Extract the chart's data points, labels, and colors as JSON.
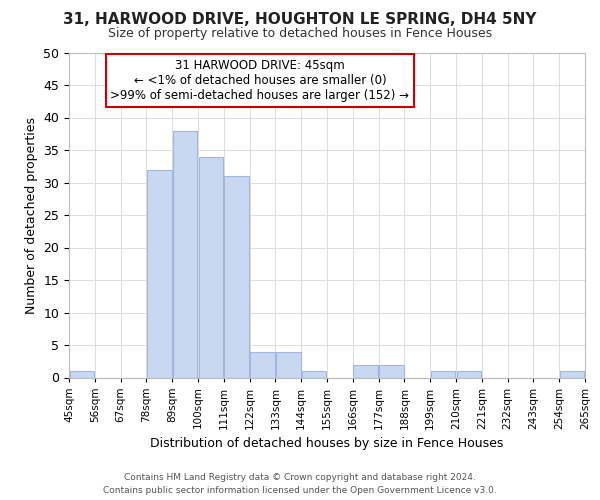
{
  "title": "31, HARWOOD DRIVE, HOUGHTON LE SPRING, DH4 5NY",
  "subtitle": "Size of property relative to detached houses in Fence Houses",
  "xlabel": "Distribution of detached houses by size in Fence Houses",
  "ylabel": "Number of detached properties",
  "bin_edges": [
    45,
    56,
    67,
    78,
    89,
    100,
    111,
    122,
    133,
    144,
    155,
    166,
    177,
    188,
    199,
    210,
    221,
    232,
    243,
    254,
    265
  ],
  "bin_counts": [
    1,
    0,
    0,
    32,
    38,
    34,
    31,
    4,
    4,
    1,
    0,
    2,
    2,
    0,
    1,
    1,
    0,
    0,
    0,
    1
  ],
  "bar_color": "#c8d8f0",
  "bar_edge_color": "#a0b8e0",
  "annotation_title": "31 HARWOOD DRIVE: 45sqm",
  "annotation_line1": "← <1% of detached houses are smaller (0)",
  "annotation_line2": ">99% of semi-detached houses are larger (152) →",
  "annotation_box_color": "#ffffff",
  "annotation_box_edgecolor": "#cc0000",
  "ylim": [
    0,
    50
  ],
  "xlim": [
    45,
    265
  ],
  "tick_labels": [
    "45sqm",
    "56sqm",
    "67sqm",
    "78sqm",
    "89sqm",
    "100sqm",
    "111sqm",
    "122sqm",
    "133sqm",
    "144sqm",
    "155sqm",
    "166sqm",
    "177sqm",
    "188sqm",
    "199sqm",
    "210sqm",
    "221sqm",
    "232sqm",
    "243sqm",
    "254sqm",
    "265sqm"
  ],
  "footer1": "Contains HM Land Registry data © Crown copyright and database right 2024.",
  "footer2": "Contains public sector information licensed under the Open Government Licence v3.0.",
  "bg_color": "#ffffff",
  "grid_color": "#dddddd",
  "title_fontsize": 11,
  "subtitle_fontsize": 9,
  "ylabel_fontsize": 9,
  "xlabel_fontsize": 9,
  "tick_fontsize": 7.5,
  "annotation_fontsize": 8.5,
  "footer_fontsize": 6.5
}
